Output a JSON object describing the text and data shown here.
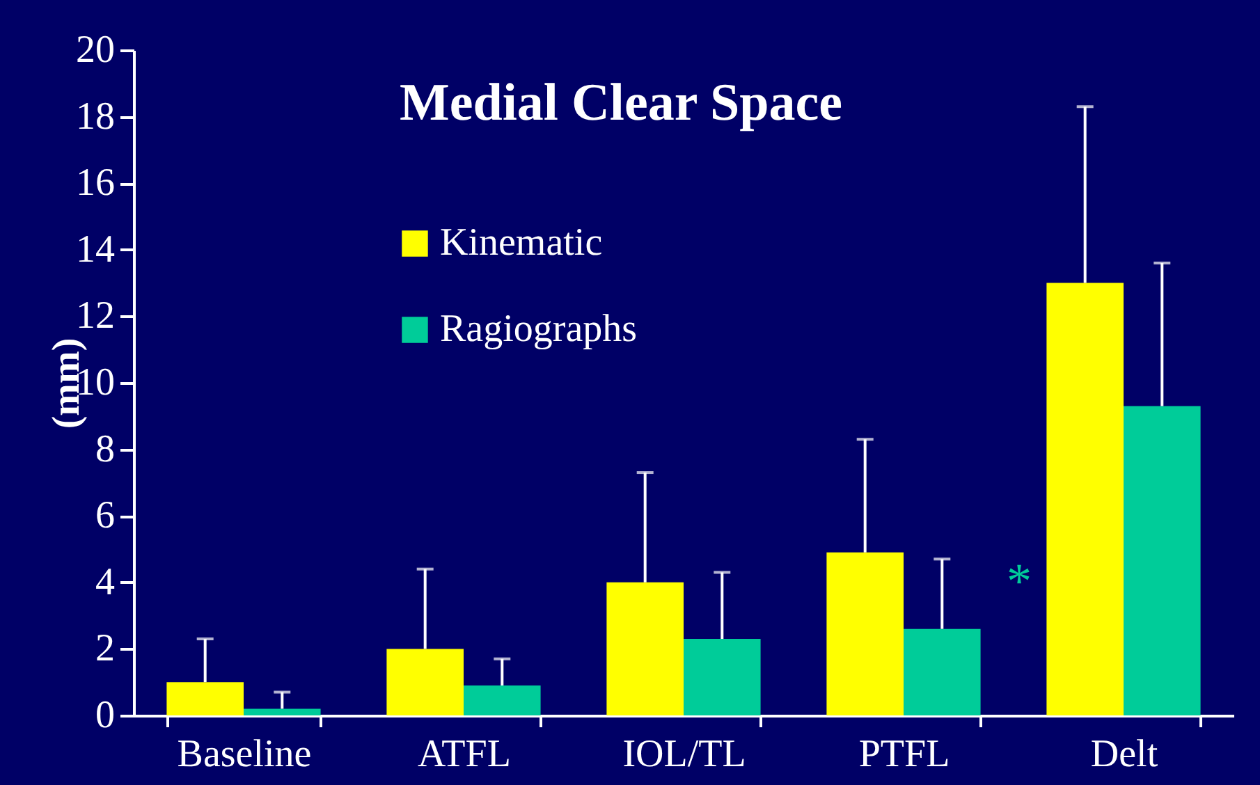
{
  "chart_data": {
    "type": "bar",
    "title": "Medial Clear Space",
    "ylabel": "(mm)",
    "categories": [
      "Baseline",
      "ATFL",
      "IOL/TL",
      "PTFL",
      "Delt"
    ],
    "series": [
      {
        "name": "Kinematic",
        "color": "#ffff00",
        "values": [
          1.0,
          2.0,
          4.0,
          4.9,
          13.0
        ],
        "errors": [
          [
            1.0,
            2.3
          ],
          [
            2.0,
            4.4
          ],
          [
            4.0,
            7.3
          ],
          [
            4.9,
            8.3
          ],
          [
            13.0,
            18.3
          ]
        ]
      },
      {
        "name": "Ragiographs",
        "color": "#00cc99",
        "values": [
          0.2,
          0.9,
          2.3,
          2.6,
          9.3
        ],
        "errors": [
          [
            0.2,
            0.7
          ],
          [
            0.9,
            1.7
          ],
          [
            2.3,
            4.3
          ],
          [
            2.6,
            4.7
          ],
          [
            9.3,
            13.6
          ]
        ]
      }
    ],
    "annotations": [
      {
        "text": "*",
        "x": "Delt",
        "y": 4.5
      }
    ],
    "ylim": [
      0,
      20
    ],
    "yticks": [
      0,
      2,
      4,
      6,
      8,
      10,
      12,
      14,
      16,
      18,
      20
    ],
    "grid": false,
    "legend": "top left"
  }
}
